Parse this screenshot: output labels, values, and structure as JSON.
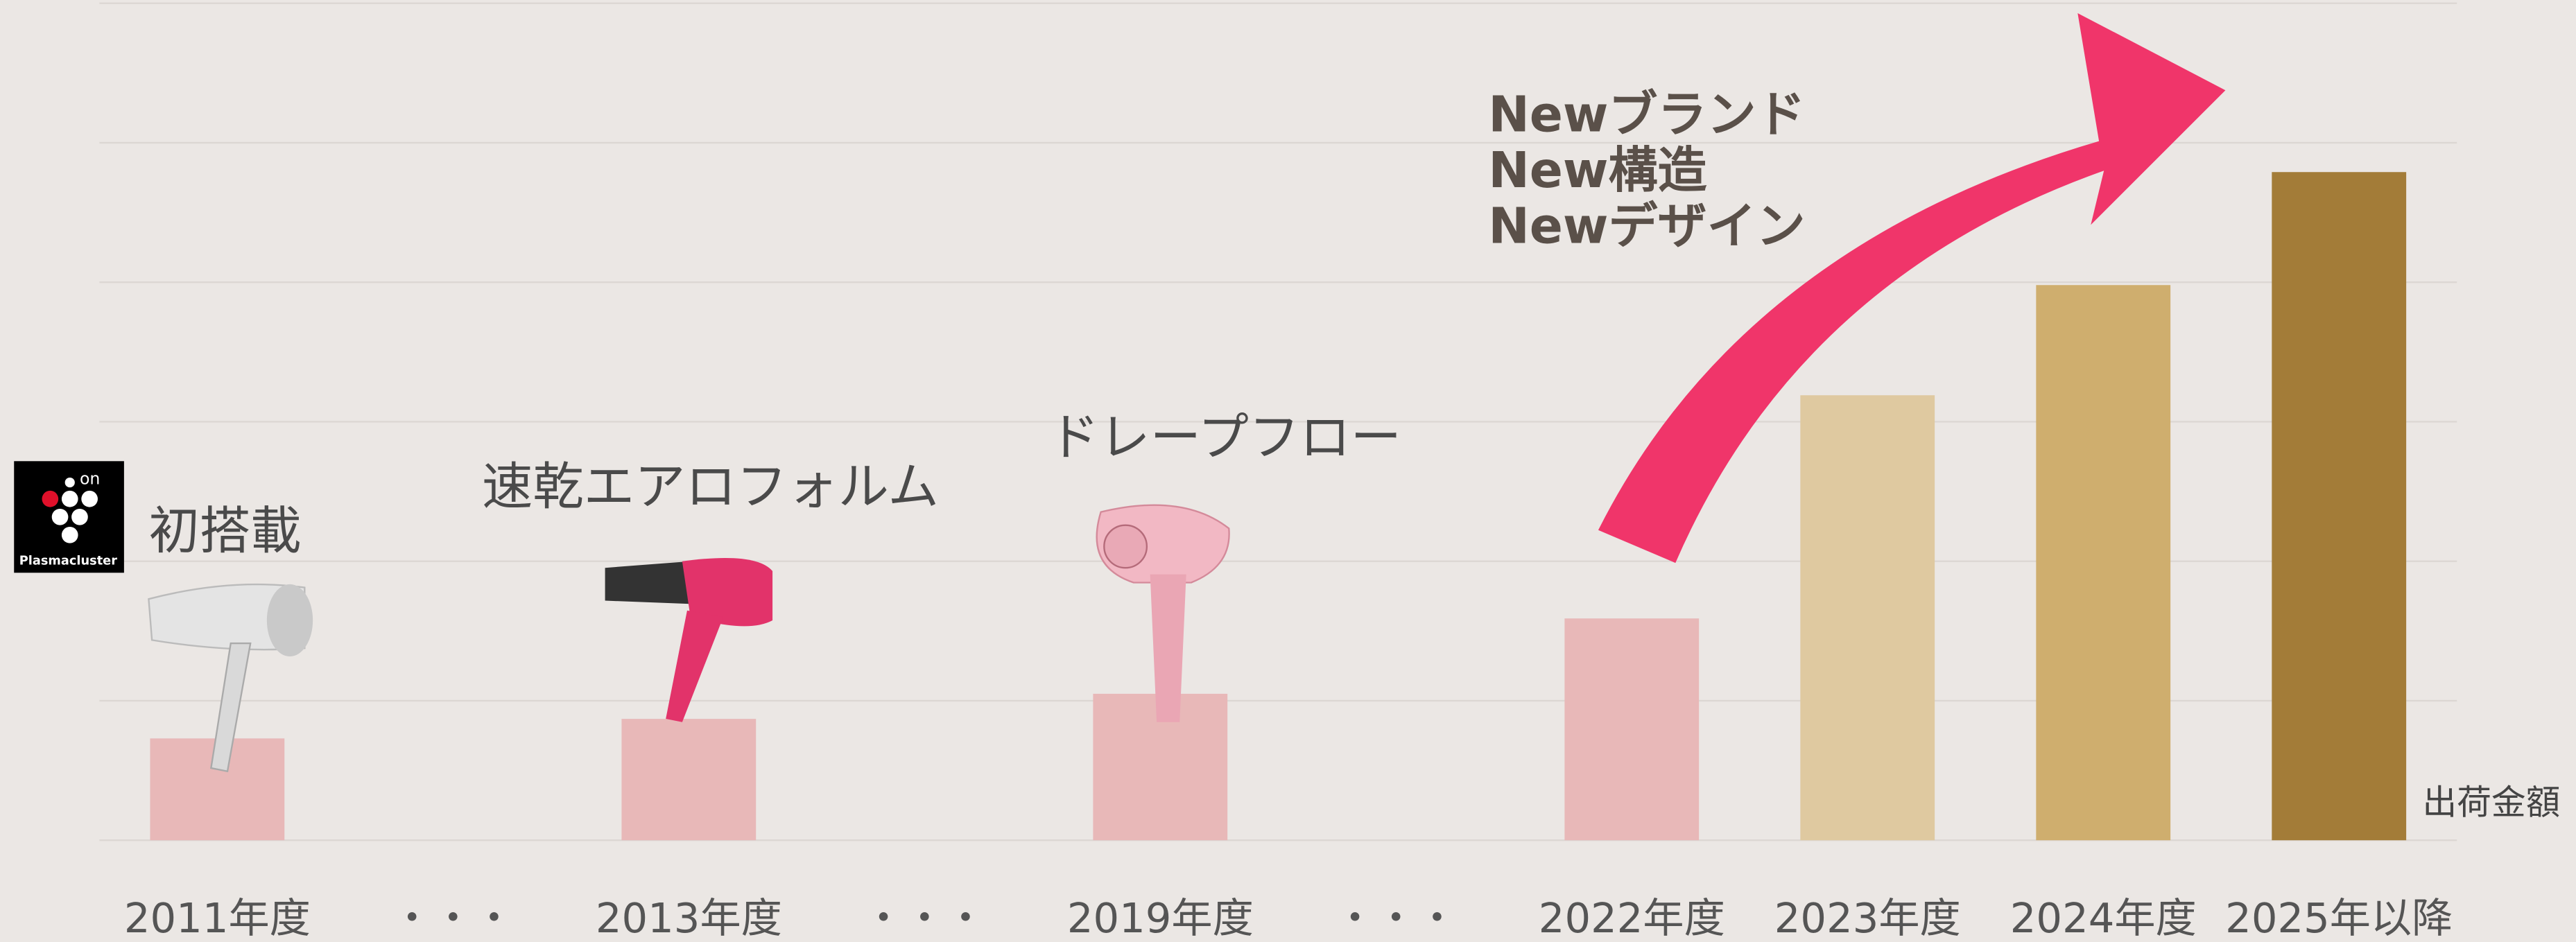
{
  "chart_data": {
    "type": "bar",
    "categories": [
      "2011年度",
      "・・・",
      "2013年度",
      "・・・",
      "2019年度",
      "・・・",
      "2022年度",
      "2023年度",
      "2024年度",
      "2025年以降"
    ],
    "values": [
      0.73,
      null,
      0.87,
      null,
      1.05,
      null,
      1.59,
      3.19,
      3.98,
      4.79
    ],
    "colors": [
      "#e8b8b8",
      null,
      "#e8b8b8",
      null,
      "#e8b8b8",
      null,
      "#e8b8b8",
      "#dfc9a0",
      "#cfae6e",
      "#a37c38"
    ],
    "ylim": [
      0,
      6
    ],
    "yticks": [
      0,
      1,
      2,
      3,
      4,
      5,
      6
    ],
    "grid": true,
    "y_label": "出荷金額",
    "annotations": [
      "初搭載",
      "速乾エアロフォルム",
      "ドレープフロー",
      "Newブランド",
      "New構造",
      "Newデザイン"
    ]
  },
  "logo": {
    "mark": "on",
    "name": "Plasmacluster"
  }
}
